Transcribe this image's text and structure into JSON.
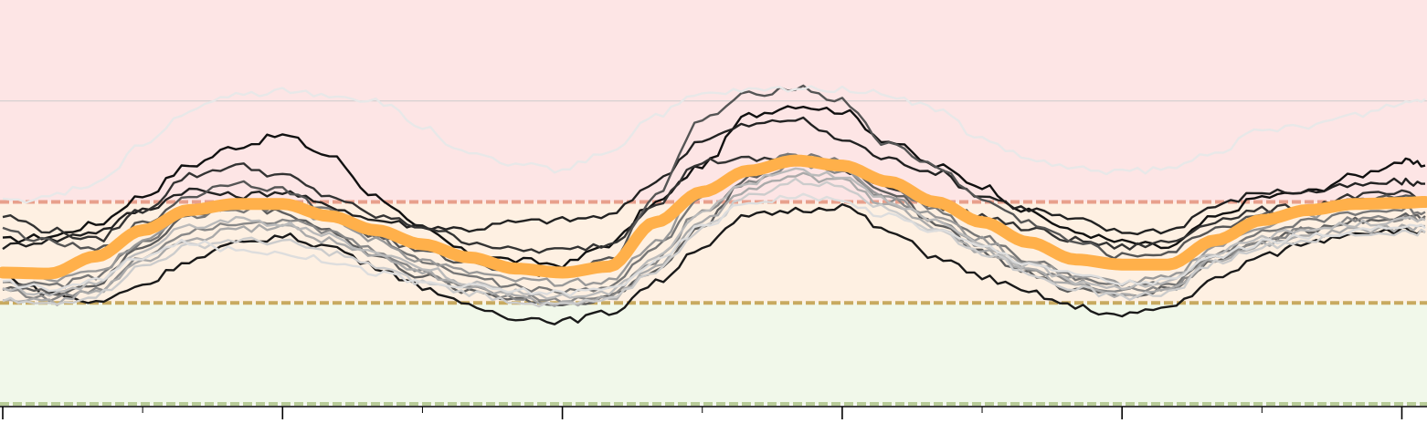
{
  "colors": {
    "zone_high": "#fde5e5",
    "zone_mid": "#fef0e2",
    "zone_low": "#f1f8ea",
    "threshold_high": "#e8a08c",
    "threshold_mid": "#c8aa60",
    "threshold_low": "#b8cc98",
    "reference": "#cccccc",
    "median": "#ffb04a"
  },
  "chart_data": {
    "type": "line",
    "title": "",
    "xlabel": "",
    "ylabel": "",
    "xlim": [
      0,
      30.5
    ],
    "ylim": [
      0,
      4.0
    ],
    "x_major_ticks": [
      0,
      6,
      12,
      18,
      24,
      30
    ],
    "x_minor_ticks": [
      3,
      9,
      15,
      21,
      27
    ],
    "tick_labels_shown": false,
    "grid": false,
    "legend": "none",
    "zones": [
      {
        "from": 2.0,
        "to": 4.0,
        "color_key": "zone_high"
      },
      {
        "from": 1.0,
        "to": 2.0,
        "color_key": "zone_mid"
      },
      {
        "from": 0.0,
        "to": 1.0,
        "color_key": "zone_low"
      }
    ],
    "thresholds": [
      {
        "y": 2.0,
        "style": "dashed",
        "color_key": "threshold_high"
      },
      {
        "y": 1.0,
        "style": "dashed",
        "color_key": "threshold_mid"
      },
      {
        "y": 0.0,
        "style": "dashed",
        "color_key": "threshold_low"
      }
    ],
    "reference_line": {
      "y": 3.0,
      "color_key": "reference"
    },
    "x": [
      0,
      1,
      2,
      3,
      4,
      5,
      6,
      7,
      8,
      9,
      10,
      11,
      12,
      13,
      14,
      15,
      16,
      17,
      18,
      19,
      20,
      21,
      22,
      23,
      24,
      25,
      26,
      27,
      28,
      29,
      30,
      30.5
    ],
    "median": [
      1.3,
      1.29,
      1.46,
      1.72,
      1.92,
      1.98,
      1.98,
      1.86,
      1.72,
      1.58,
      1.45,
      1.34,
      1.3,
      1.36,
      1.8,
      2.1,
      2.31,
      2.41,
      2.36,
      2.2,
      2.0,
      1.8,
      1.6,
      1.43,
      1.38,
      1.38,
      1.62,
      1.82,
      1.92,
      1.98,
      1.99,
      2.0
    ],
    "series": [
      {
        "shade": "#111111",
        "values": [
          1.62,
          1.66,
          1.78,
          2.06,
          2.36,
          2.55,
          2.66,
          2.46,
          2.06,
          1.72,
          1.5,
          1.42,
          1.38,
          1.58,
          1.99,
          2.36,
          2.86,
          2.96,
          2.9,
          2.6,
          2.36,
          2.16,
          1.9,
          1.7,
          1.6,
          1.55,
          1.85,
          2.05,
          2.1,
          2.26,
          2.4,
          2.36
        ]
      },
      {
        "shade": "#222222",
        "values": [
          1.56,
          1.62,
          1.71,
          1.92,
          2.12,
          2.06,
          2.1,
          1.96,
          1.82,
          1.76,
          1.73,
          1.8,
          1.82,
          1.86,
          2.2,
          2.62,
          2.76,
          2.82,
          2.62,
          2.42,
          2.3,
          2.06,
          1.93,
          1.82,
          1.7,
          1.72,
          1.96,
          2.1,
          2.1,
          2.16,
          2.2,
          2.18
        ]
      },
      {
        "shade": "#333333",
        "values": [
          1.86,
          1.72,
          1.62,
          1.92,
          2.26,
          2.36,
          2.26,
          2.06,
          1.86,
          1.76,
          1.61,
          1.52,
          1.52,
          1.58,
          1.99,
          2.4,
          2.42,
          2.42,
          2.32,
          2.16,
          1.96,
          1.86,
          1.73,
          1.62,
          1.55,
          1.6,
          1.82,
          1.92,
          1.96,
          2.06,
          2.08,
          2.02
        ]
      },
      {
        "shade": "#1a1a1a",
        "values": [
          1.26,
          1.1,
          1.0,
          1.18,
          1.42,
          1.58,
          1.66,
          1.56,
          1.36,
          1.16,
          0.96,
          0.86,
          0.82,
          0.9,
          1.2,
          1.56,
          1.86,
          1.92,
          1.96,
          1.7,
          1.46,
          1.26,
          1.1,
          0.96,
          0.87,
          0.96,
          1.23,
          1.46,
          1.6,
          1.7,
          1.72,
          1.7
        ]
      },
      {
        "shade": "#555555",
        "values": [
          1.72,
          1.6,
          1.52,
          1.78,
          2.06,
          2.2,
          2.12,
          1.9,
          1.66,
          1.5,
          1.4,
          1.32,
          1.28,
          1.42,
          2.06,
          2.82,
          3.06,
          3.14,
          3.0,
          2.56,
          2.36,
          2.02,
          1.8,
          1.6,
          1.46,
          1.5,
          1.74,
          1.88,
          1.92,
          2.02,
          2.04,
          2.0
        ]
      },
      {
        "shade": "#5e5e5e",
        "values": [
          1.16,
          1.1,
          1.18,
          1.56,
          1.86,
          1.96,
          1.9,
          1.72,
          1.46,
          1.26,
          1.12,
          1.04,
          0.98,
          1.06,
          1.32,
          1.76,
          2.26,
          2.46,
          2.36,
          2.1,
          1.8,
          1.5,
          1.28,
          1.12,
          1.08,
          1.14,
          1.42,
          1.62,
          1.72,
          1.82,
          1.86,
          1.86
        ]
      },
      {
        "shade": "#777777",
        "values": [
          1.22,
          1.16,
          1.26,
          1.6,
          1.86,
          1.9,
          1.96,
          1.92,
          1.66,
          1.42,
          1.26,
          1.16,
          1.1,
          1.16,
          1.56,
          2.06,
          2.32,
          2.46,
          2.4,
          2.16,
          1.92,
          1.66,
          1.42,
          1.26,
          1.16,
          1.18,
          1.5,
          1.7,
          1.8,
          1.9,
          1.92,
          1.9
        ]
      },
      {
        "shade": "#888888",
        "values": [
          1.14,
          1.04,
          1.12,
          1.46,
          1.72,
          1.8,
          1.82,
          1.7,
          1.52,
          1.3,
          1.16,
          1.06,
          1.02,
          1.08,
          1.42,
          1.92,
          2.2,
          2.38,
          2.3,
          2.02,
          1.82,
          1.56,
          1.33,
          1.2,
          1.12,
          1.14,
          1.44,
          1.62,
          1.72,
          1.82,
          1.84,
          1.84
        ]
      },
      {
        "shade": "#999999",
        "values": [
          1.3,
          1.22,
          1.3,
          1.62,
          1.92,
          2.02,
          1.96,
          1.82,
          1.62,
          1.42,
          1.3,
          1.22,
          1.2,
          1.22,
          1.6,
          2.12,
          2.3,
          2.42,
          2.32,
          2.06,
          1.86,
          1.62,
          1.4,
          1.26,
          1.2,
          1.24,
          1.56,
          1.76,
          1.86,
          1.96,
          1.98,
          1.98
        ]
      },
      {
        "shade": "#aaaaaa",
        "values": [
          1.06,
          1.0,
          1.12,
          1.4,
          1.62,
          1.72,
          1.76,
          1.62,
          1.46,
          1.3,
          1.16,
          1.06,
          0.98,
          1.04,
          1.36,
          1.8,
          2.12,
          2.26,
          2.2,
          1.96,
          1.74,
          1.52,
          1.32,
          1.16,
          1.08,
          1.12,
          1.42,
          1.58,
          1.66,
          1.72,
          1.74,
          1.76
        ]
      },
      {
        "shade": "#bbbbbb",
        "values": [
          1.16,
          1.08,
          1.2,
          1.52,
          1.76,
          1.82,
          1.78,
          1.66,
          1.5,
          1.36,
          1.2,
          1.1,
          1.06,
          1.1,
          1.46,
          1.9,
          2.2,
          2.32,
          2.26,
          2.02,
          1.8,
          1.56,
          1.36,
          1.22,
          1.16,
          1.2,
          1.5,
          1.66,
          1.72,
          1.78,
          1.82,
          1.82
        ]
      },
      {
        "shade": "#cccccc",
        "values": [
          1.02,
          0.98,
          1.08,
          1.36,
          1.56,
          1.62,
          1.6,
          1.5,
          1.36,
          1.2,
          1.1,
          1.02,
          0.98,
          1.02,
          1.32,
          1.74,
          2.06,
          2.2,
          2.16,
          1.92,
          1.72,
          1.5,
          1.3,
          1.14,
          1.06,
          1.1,
          1.4,
          1.56,
          1.62,
          1.68,
          1.7,
          1.7
        ]
      },
      {
        "shade": "#dddddd",
        "values": [
          1.2,
          1.14,
          1.22,
          1.46,
          1.6,
          1.52,
          1.5,
          1.42,
          1.3,
          1.2,
          1.16,
          1.12,
          1.1,
          1.14,
          1.4,
          1.76,
          2.0,
          2.06,
          2.0,
          1.86,
          1.72,
          1.56,
          1.4,
          1.28,
          1.2,
          1.22,
          1.46,
          1.6,
          1.66,
          1.72,
          1.74,
          1.74
        ]
      },
      {
        "shade": "#e8e8e8",
        "values": [
          2.0,
          2.05,
          2.18,
          2.56,
          2.9,
          3.06,
          3.1,
          3.06,
          3.0,
          2.74,
          2.46,
          2.36,
          2.32,
          2.5,
          2.86,
          3.06,
          3.1,
          3.12,
          3.12,
          3.06,
          2.92,
          2.62,
          2.42,
          2.32,
          2.3,
          2.32,
          2.5,
          2.7,
          2.76,
          2.86,
          2.98,
          3.02
        ]
      }
    ]
  }
}
